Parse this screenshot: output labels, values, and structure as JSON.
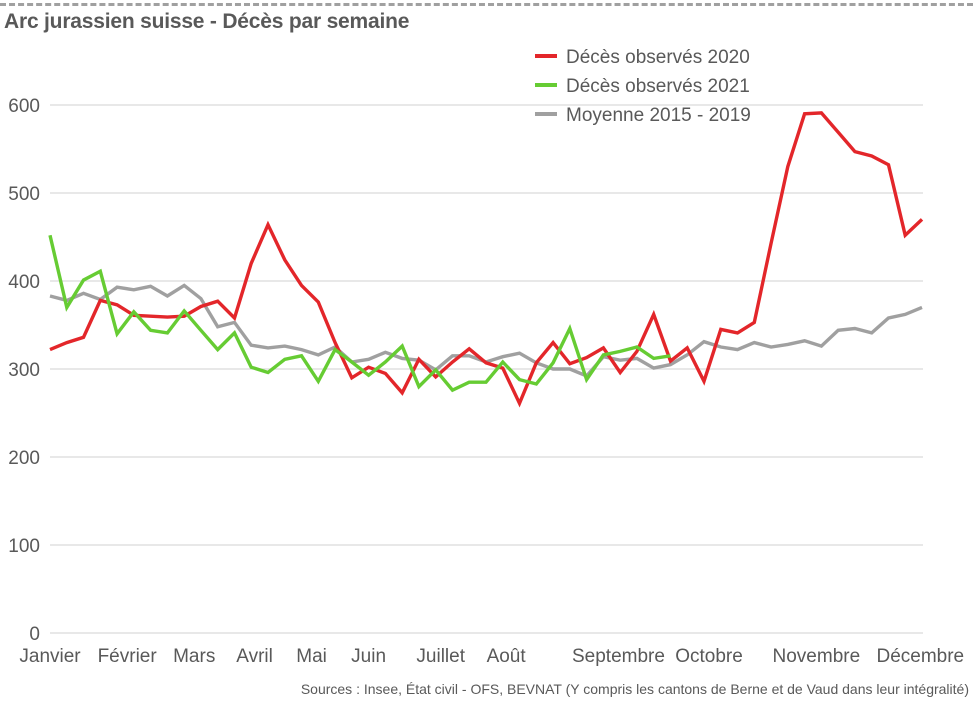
{
  "chart_data": {
    "type": "line",
    "title": "Arc jurassien suisse - Décès par semaine",
    "xlabel": "",
    "ylabel": "",
    "ylim": [
      0,
      600
    ],
    "yticks": [
      0,
      100,
      200,
      300,
      400,
      500,
      600
    ],
    "ytick_labels": [
      "0",
      "100",
      "200",
      "300",
      "400",
      "500",
      "600"
    ],
    "x_range_weeks": [
      1,
      53
    ],
    "grid": "horizontal",
    "legend_position": "top-right",
    "month_labels": [
      {
        "label": "Janvier",
        "at_week": 1
      },
      {
        "label": "Février",
        "at_week": 5.6
      },
      {
        "label": "Mars",
        "at_week": 9.6
      },
      {
        "label": "Avril",
        "at_week": 13.2
      },
      {
        "label": "Mai",
        "at_week": 16.6
      },
      {
        "label": "Juin",
        "at_week": 20
      },
      {
        "label": "Juillet",
        "at_week": 24.3
      },
      {
        "label": "Août",
        "at_week": 28.2
      },
      {
        "label": "Septembre",
        "at_week": 34.9
      },
      {
        "label": "Octobre",
        "at_week": 40.3
      },
      {
        "label": "Novembre",
        "at_week": 46.7
      },
      {
        "label": "Décembre",
        "at_week": 52.9
      }
    ],
    "series": [
      {
        "name": "Décès observés 2020",
        "color": "#e3262a",
        "values": [
          322,
          330,
          336,
          378,
          373,
          361,
          360,
          359,
          360,
          371,
          377,
          358,
          420,
          464,
          424,
          395,
          376,
          330,
          290,
          302,
          295,
          273,
          311,
          291,
          308,
          323,
          307,
          301,
          261,
          307,
          330,
          306,
          313,
          324,
          296,
          320,
          362,
          309,
          324,
          286,
          345,
          341,
          353,
          443,
          530,
          590,
          591,
          569,
          547,
          542,
          532,
          452,
          470
        ]
      },
      {
        "name": "Décès observés 2021",
        "color": "#66cc33",
        "values": [
          452,
          370,
          401,
          411,
          340,
          365,
          344,
          341,
          366,
          344,
          322,
          341,
          302,
          296,
          311,
          315,
          286,
          322,
          308,
          293,
          308,
          326,
          280,
          299,
          276,
          285,
          285,
          308,
          288,
          283,
          307,
          346,
          288,
          316,
          320,
          325,
          312,
          315
        ]
      },
      {
        "name": "Moyenne 2015 - 2019",
        "color": "#a0a0a0",
        "values": [
          383,
          378,
          386,
          379,
          393,
          390,
          394,
          383,
          395,
          380,
          348,
          353,
          327,
          324,
          326,
          322,
          316,
          325,
          308,
          311,
          319,
          312,
          310,
          299,
          315,
          315,
          308,
          314,
          318,
          307,
          300,
          300,
          292,
          314,
          310,
          312,
          301,
          305,
          316,
          331,
          325,
          322,
          330,
          325,
          328,
          332,
          326,
          344,
          346,
          341,
          358,
          362,
          370
        ]
      }
    ],
    "source": "Sources : Insee, État civil - OFS, BEVNAT (Y compris les cantons de Berne et de Vaud dans leur intégralité)"
  },
  "colors": {
    "text": "#595959",
    "grid": "#d9d9d9",
    "border_dash": "#a0a0a0"
  }
}
